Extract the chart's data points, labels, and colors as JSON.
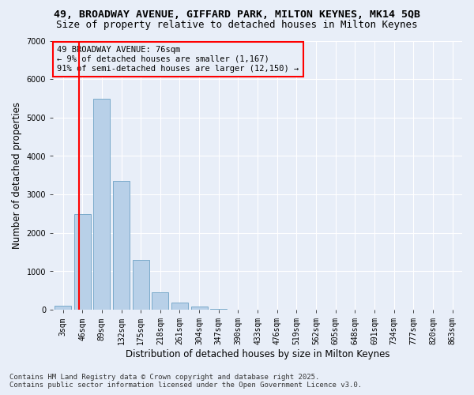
{
  "title_line1": "49, BROADWAY AVENUE, GIFFARD PARK, MILTON KEYNES, MK14 5QB",
  "title_line2": "Size of property relative to detached houses in Milton Keynes",
  "xlabel": "Distribution of detached houses by size in Milton Keynes",
  "ylabel": "Number of detached properties",
  "bg_color": "#e8eef8",
  "bar_color": "#b8d0e8",
  "bar_edge_color": "#7aaaca",
  "grid_color": "#ffffff",
  "annotation_text": "49 BROADWAY AVENUE: 76sqm\n← 9% of detached houses are smaller (1,167)\n91% of semi-detached houses are larger (12,150) →",
  "red_line_bin": 1,
  "categories": [
    "3sqm",
    "46sqm",
    "89sqm",
    "132sqm",
    "175sqm",
    "218sqm",
    "261sqm",
    "304sqm",
    "347sqm",
    "390sqm",
    "433sqm",
    "476sqm",
    "519sqm",
    "562sqm",
    "605sqm",
    "648sqm",
    "691sqm",
    "734sqm",
    "777sqm",
    "820sqm",
    "863sqm"
  ],
  "bar_heights": [
    100,
    2500,
    5500,
    3350,
    1300,
    460,
    185,
    85,
    30,
    5,
    2,
    1,
    0,
    0,
    0,
    0,
    0,
    0,
    0,
    0,
    0
  ],
  "ylim": [
    0,
    7000
  ],
  "yticks": [
    0,
    1000,
    2000,
    3000,
    4000,
    5000,
    6000,
    7000
  ],
  "footer_line1": "Contains HM Land Registry data © Crown copyright and database right 2025.",
  "footer_line2": "Contains public sector information licensed under the Open Government Licence v3.0.",
  "title_fontsize": 9.5,
  "subtitle_fontsize": 9,
  "axis_label_fontsize": 8.5,
  "tick_fontsize": 7,
  "annotation_fontsize": 7.5,
  "footer_fontsize": 6.5
}
